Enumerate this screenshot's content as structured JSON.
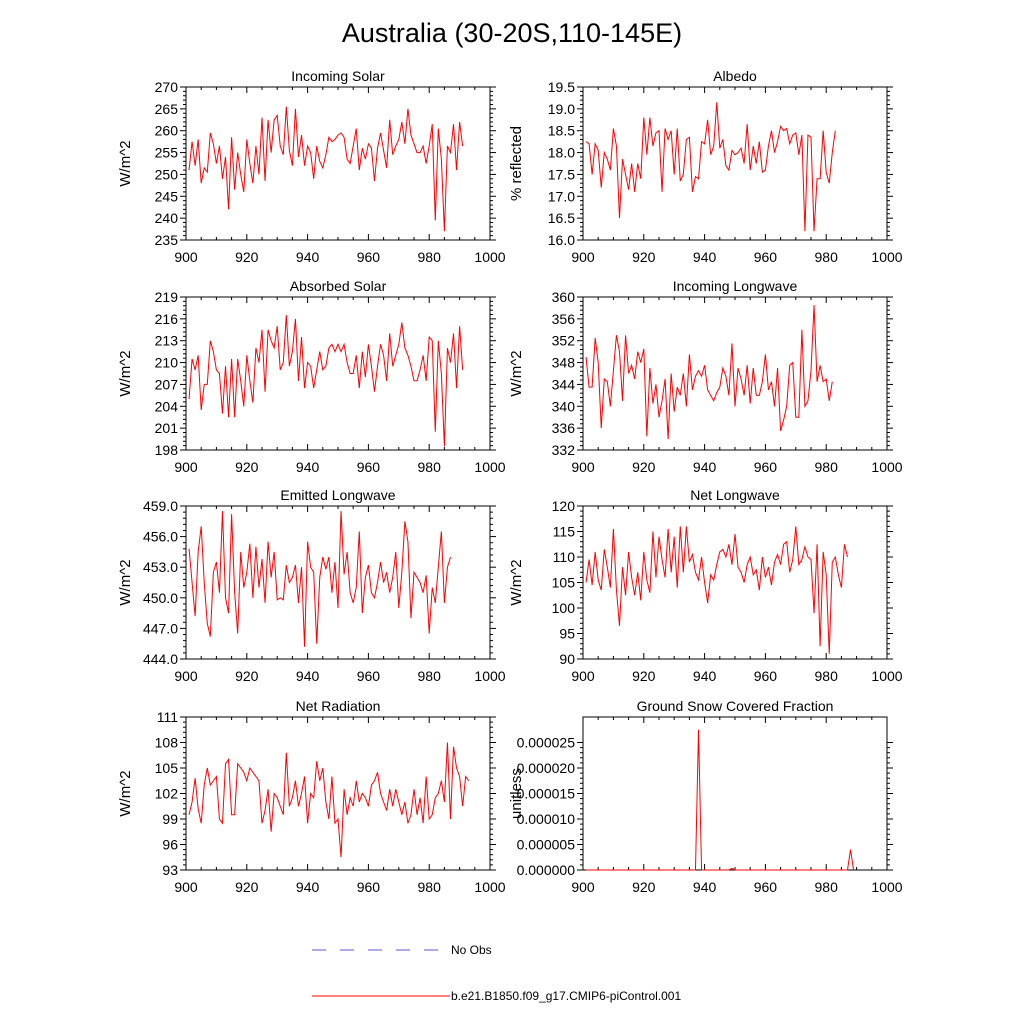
{
  "title": "Australia (30-20S,110-145E)",
  "colors": {
    "model": "#ff0000",
    "obs": "#5a5ad2",
    "axis": "#000000"
  },
  "legend": [
    {
      "label": "No Obs",
      "style": "dashed",
      "color": "#5a5ad2"
    },
    {
      "label": "b.e21.B1850.f09_g17.CMIP6-piControl.001",
      "style": "solid",
      "color": "#ff0000"
    }
  ],
  "chart_data": [
    {
      "type": "line",
      "title": "Incoming Solar",
      "xlabel": "",
      "ylabel": "W/m^2",
      "xlim": [
        900,
        1000
      ],
      "ylim": [
        235,
        270
      ],
      "decimals": 0,
      "xticks": [
        900,
        920,
        940,
        960,
        980,
        1000
      ],
      "yticks": [
        235,
        240,
        245,
        250,
        255,
        260,
        265,
        270
      ],
      "x_start": 901,
      "values": [
        251.0,
        257.5,
        252.0,
        258.0,
        248.0,
        251.5,
        250.5,
        259.5,
        257.0,
        252.5,
        256.5,
        249.0,
        254.0,
        242.0,
        258.5,
        246.5,
        255.0,
        250.0,
        246.0,
        258.0,
        252.5,
        248.0,
        256.5,
        250.0,
        263.0,
        248.5,
        262.5,
        255.0,
        262.5,
        263.5,
        256.5,
        254.5,
        265.5,
        255.5,
        252.0,
        265.0,
        254.0,
        259.0,
        252.0,
        256.5,
        255.0,
        249.0,
        256.5,
        253.0,
        251.5,
        254.5,
        258.5,
        257.5,
        258.0,
        259.0,
        259.5,
        258.5,
        253.5,
        252.5,
        256.5,
        260.5,
        251.0,
        256.0,
        253.5,
        257.0,
        256.0,
        248.5,
        256.0,
        259.5,
        255.5,
        251.5,
        262.5,
        254.5,
        256.5,
        258.0,
        262.0,
        257.0,
        265.0,
        259.0,
        257.0,
        255.0,
        255.0,
        256.5,
        252.5,
        256.5,
        261.5,
        239.5,
        260.5,
        253.5,
        237.0,
        256.5,
        255.0,
        261.5,
        251.0,
        262.0,
        256.5
      ]
    },
    {
      "type": "line",
      "title": "Albedo",
      "xlabel": "",
      "ylabel": "% reflected",
      "xlim": [
        900,
        1000
      ],
      "ylim": [
        16.0,
        19.5
      ],
      "decimals": 1,
      "xticks": [
        900,
        920,
        940,
        960,
        980,
        1000
      ],
      "yticks": [
        16.0,
        16.5,
        17.0,
        17.5,
        18.0,
        18.5,
        19.0,
        19.5
      ],
      "x_start": 901,
      "values": [
        18.25,
        18.2,
        17.5,
        18.2,
        18.05,
        17.2,
        18.0,
        17.85,
        17.6,
        18.55,
        18.15,
        16.5,
        17.85,
        17.5,
        17.15,
        17.75,
        17.1,
        17.75,
        17.4,
        18.8,
        17.95,
        18.8,
        18.15,
        18.45,
        18.5,
        17.1,
        18.55,
        18.3,
        18.5,
        17.5,
        18.55,
        17.35,
        17.5,
        18.3,
        18.35,
        17.1,
        17.45,
        17.4,
        18.25,
        18.2,
        18.75,
        17.95,
        18.15,
        19.15,
        18.1,
        18.3,
        17.7,
        17.6,
        18.05,
        17.95,
        18.0,
        18.1,
        17.75,
        18.65,
        17.6,
        18.15,
        17.75,
        18.25,
        17.55,
        17.6,
        18.15,
        18.5,
        18.0,
        18.25,
        18.6,
        18.5,
        18.55,
        18.2,
        18.4,
        18.45,
        17.95,
        18.4,
        16.2,
        18.4,
        18.35,
        16.2,
        17.4,
        17.4,
        18.5,
        17.55,
        17.3,
        18.0,
        18.5
      ]
    },
    {
      "type": "line",
      "title": "Absorbed Solar",
      "xlabel": "",
      "ylabel": "W/m^2",
      "xlim": [
        900,
        1000
      ],
      "ylim": [
        198,
        219
      ],
      "decimals": 0,
      "xticks": [
        900,
        920,
        940,
        960,
        980,
        1000
      ],
      "yticks": [
        198,
        201,
        204,
        207,
        210,
        213,
        216,
        219
      ],
      "x_start": 901,
      "values": [
        205.0,
        210.5,
        209.0,
        211.0,
        203.5,
        207.0,
        207.0,
        213.0,
        211.5,
        209.0,
        208.5,
        203.0,
        209.5,
        202.5,
        210.5,
        202.5,
        210.5,
        207.5,
        204.0,
        211.0,
        207.5,
        204.5,
        212.0,
        210.0,
        214.5,
        206.0,
        214.5,
        213.0,
        212.0,
        215.0,
        209.0,
        210.0,
        216.5,
        209.5,
        211.5,
        216.0,
        207.5,
        213.5,
        206.5,
        210.0,
        209.5,
        206.5,
        209.0,
        211.5,
        209.0,
        209.5,
        212.0,
        212.5,
        211.5,
        212.5,
        211.5,
        212.5,
        210.0,
        208.5,
        208.5,
        211.0,
        206.5,
        211.5,
        208.0,
        212.5,
        209.5,
        206.0,
        209.5,
        212.5,
        211.0,
        207.5,
        214.0,
        209.5,
        211.0,
        212.5,
        215.5,
        212.0,
        211.0,
        209.5,
        207.5,
        207.5,
        209.0,
        211.0,
        207.5,
        213.5,
        213.0,
        200.5,
        213.0,
        208.5,
        198.5,
        212.0,
        210.0,
        214.0,
        206.5,
        215.0,
        209.0
      ]
    },
    {
      "type": "line",
      "title": "Incoming Longwave",
      "xlabel": "",
      "ylabel": "W/m^2",
      "xlim": [
        900,
        1000
      ],
      "ylim": [
        332,
        360
      ],
      "decimals": 0,
      "xticks": [
        900,
        920,
        940,
        960,
        980,
        1000
      ],
      "yticks": [
        332,
        336,
        340,
        344,
        348,
        352,
        356,
        360
      ],
      "x_start": 901,
      "values": [
        349.0,
        343.5,
        343.5,
        352.5,
        348.0,
        336.0,
        345.0,
        344.5,
        340.0,
        346.5,
        353.0,
        350.0,
        341.0,
        353.0,
        346.0,
        347.5,
        345.0,
        350.0,
        348.0,
        350.5,
        334.5,
        347.0,
        340.5,
        344.0,
        338.0,
        341.0,
        345.0,
        334.0,
        346.0,
        339.0,
        343.5,
        342.0,
        346.0,
        340.0,
        349.5,
        343.0,
        345.5,
        346.5,
        345.5,
        347.5,
        343.0,
        342.0,
        341.0,
        342.5,
        343.5,
        347.0,
        345.5,
        342.0,
        351.5,
        340.0,
        347.0,
        345.0,
        342.0,
        347.5,
        340.5,
        347.0,
        342.0,
        342.0,
        344.5,
        349.5,
        343.0,
        344.5,
        340.0,
        347.0,
        335.5,
        337.5,
        340.0,
        347.5,
        348.0,
        338.0,
        338.0,
        354.0,
        340.0,
        341.0,
        346.5,
        358.5,
        344.5,
        347.5,
        344.5,
        345.0,
        341.0,
        344.5
      ]
    },
    {
      "type": "line",
      "title": "Emitted Longwave",
      "xlabel": "",
      "ylabel": "W/m^2",
      "xlim": [
        900,
        1000
      ],
      "ylim": [
        444.0,
        459.0
      ],
      "decimals": 1,
      "xticks": [
        900,
        920,
        940,
        960,
        980,
        1000
      ],
      "yticks": [
        444.0,
        447.0,
        450.0,
        453.0,
        456.0,
        459.0
      ],
      "x_start": 901,
      "values": [
        454.8,
        451.5,
        448.2,
        454.5,
        457.0,
        451.5,
        447.5,
        446.2,
        452.5,
        453.5,
        450.5,
        458.5,
        450.0,
        448.5,
        458.2,
        450.5,
        446.5,
        454.5,
        451.0,
        452.5,
        455.3,
        450.0,
        455.0,
        451.0,
        453.8,
        449.5,
        455.5,
        452.0,
        454.5,
        449.8,
        450.0,
        449.8,
        453.2,
        451.5,
        452.0,
        453.2,
        449.5,
        453.0,
        445.2,
        455.5,
        453.0,
        452.5,
        445.5,
        452.0,
        454.0,
        452.8,
        454.0,
        450.5,
        453.5,
        449.0,
        458.5,
        452.3,
        454.5,
        450.5,
        449.5,
        451.0,
        456.5,
        448.5,
        452.0,
        453.2,
        450.5,
        450.0,
        451.5,
        453.5,
        451.5,
        452.5,
        450.5,
        452.0,
        454.5,
        449.0,
        452.5,
        457.5,
        455.5,
        448.0,
        452.5,
        452.0,
        451.5,
        450.5,
        452.2,
        446.5,
        451.0,
        449.5,
        453.0,
        456.5,
        449.5,
        453.0,
        454.0
      ]
    },
    {
      "type": "line",
      "title": "Net Longwave",
      "xlabel": "",
      "ylabel": "W/m^2",
      "xlim": [
        900,
        1000
      ],
      "ylim": [
        90,
        120
      ],
      "decimals": 0,
      "xticks": [
        900,
        920,
        940,
        960,
        980,
        1000
      ],
      "yticks": [
        90,
        95,
        100,
        105,
        110,
        115,
        120
      ],
      "x_start": 901,
      "values": [
        105.0,
        109.5,
        104.5,
        111.0,
        105.5,
        103.5,
        111.5,
        108.0,
        104.0,
        115.5,
        103.5,
        96.5,
        108.0,
        102.5,
        111.0,
        106.0,
        102.5,
        107.0,
        101.5,
        111.0,
        105.5,
        103.0,
        115.0,
        106.0,
        114.0,
        109.5,
        106.0,
        115.5,
        107.0,
        114.0,
        104.0,
        116.0,
        107.0,
        116.0,
        109.0,
        110.5,
        107.0,
        105.5,
        110.0,
        105.0,
        101.0,
        106.5,
        105.5,
        108.5,
        111.0,
        111.5,
        110.0,
        112.5,
        108.5,
        114.5,
        108.0,
        107.0,
        105.0,
        108.5,
        110.0,
        106.5,
        107.5,
        103.5,
        110.0,
        106.0,
        108.0,
        104.5,
        109.0,
        110.5,
        108.5,
        112.5,
        113.0,
        107.0,
        109.5,
        116.0,
        108.5,
        109.5,
        112.0,
        110.0,
        109.5,
        99.0,
        112.5,
        92.5,
        111.0,
        106.5,
        91.0,
        109.0,
        110.0,
        106.5,
        104.0,
        112.5,
        110.0
      ]
    },
    {
      "type": "line",
      "title": "Net Radiation",
      "xlabel": "",
      "ylabel": "W/m^2",
      "xlim": [
        900,
        1000
      ],
      "ylim": [
        93,
        111
      ],
      "decimals": 0,
      "xticks": [
        900,
        920,
        940,
        960,
        980,
        1000
      ],
      "yticks": [
        93,
        96,
        99,
        102,
        105,
        108,
        111
      ],
      "x_start": 901,
      "values": [
        99.5,
        101.0,
        103.8,
        100.2,
        98.5,
        103.0,
        105.0,
        103.0,
        103.5,
        104.0,
        99.0,
        98.5,
        105.5,
        106.0,
        99.5,
        99.5,
        105.5,
        105.0,
        104.5,
        103.5,
        105.0,
        104.5,
        104.0,
        103.5,
        98.5,
        100.0,
        102.5,
        97.5,
        102.0,
        101.5,
        100.5,
        99.5,
        106.8,
        100.5,
        101.5,
        103.5,
        100.5,
        102.0,
        104.0,
        98.5,
        102.0,
        101.5,
        105.8,
        103.5,
        105.0,
        101.0,
        99.0,
        104.0,
        98.5,
        99.0,
        94.5,
        102.5,
        99.5,
        101.5,
        100.5,
        103.5,
        101.0,
        102.0,
        101.5,
        100.5,
        103.0,
        103.5,
        104.5,
        102.0,
        101.0,
        100.0,
        102.5,
        100.5,
        102.5,
        101.0,
        99.5,
        101.0,
        98.5,
        99.5,
        102.5,
        99.5,
        101.5,
        98.5,
        104.0,
        99.0,
        99.5,
        101.5,
        102.0,
        103.5,
        101.0,
        108.0,
        99.0,
        107.5,
        105.0,
        104.0,
        100.5,
        104.0,
        103.5
      ]
    },
    {
      "type": "line",
      "title": "Ground Snow Covered Fraction",
      "xlabel": "",
      "ylabel": "unitless",
      "xlim": [
        900,
        1000
      ],
      "ylim": [
        0,
        3e-05
      ],
      "decimals": 6,
      "xticks": [
        900,
        920,
        940,
        960,
        980,
        1000
      ],
      "yticks": [
        0,
        5e-06,
        1e-05,
        1.5e-05,
        2e-05,
        2.5e-05
      ],
      "x_start": 901,
      "values": [
        0,
        0,
        0,
        0,
        0,
        0,
        0,
        0,
        0,
        0,
        0,
        0,
        0,
        0,
        0,
        0,
        0,
        0,
        0,
        0,
        0,
        0,
        0,
        0,
        0,
        0,
        0,
        0,
        0,
        0,
        0,
        0,
        0,
        0,
        0,
        0,
        0,
        2.75e-05,
        0,
        0,
        0,
        0,
        0,
        0,
        0,
        0,
        0,
        0,
        3e-07,
        0,
        0,
        0,
        0,
        0,
        0,
        0,
        0,
        0,
        0,
        0,
        0,
        0,
        0,
        0,
        0,
        0,
        0,
        0,
        0,
        0,
        0,
        0,
        0,
        0,
        0,
        0,
        0,
        0,
        0,
        0,
        0,
        0,
        0,
        0,
        0,
        0,
        0,
        4e-06,
        0
      ]
    }
  ]
}
